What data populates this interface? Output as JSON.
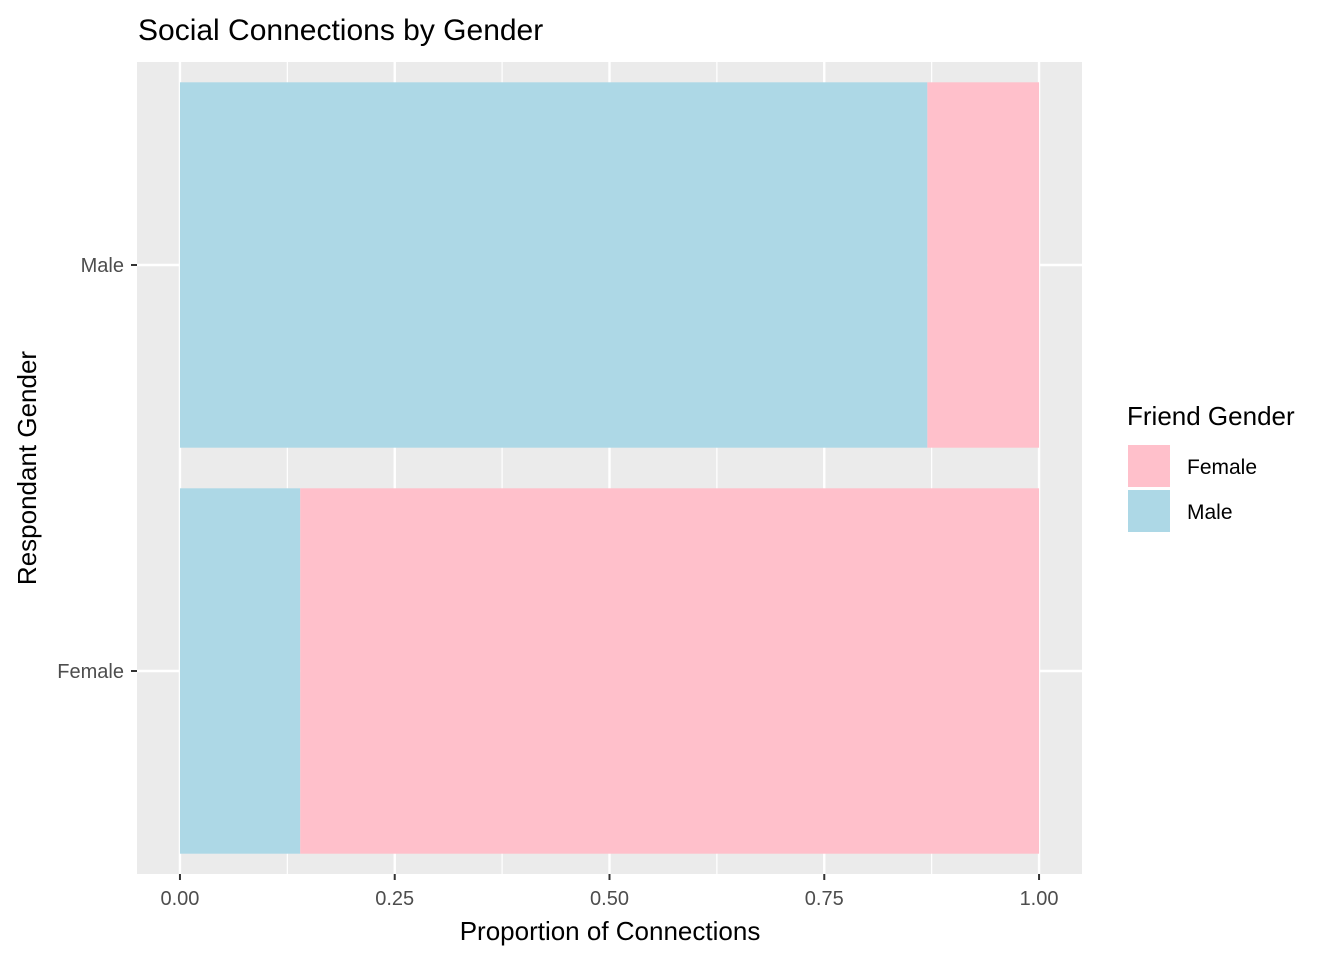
{
  "chart_data": {
    "type": "bar",
    "orientation": "horizontal",
    "stacked": true,
    "title": "Social Connections by Gender",
    "xlabel": "Proportion of Connections",
    "ylabel": "Respondant Gender",
    "categories": [
      "Male",
      "Female"
    ],
    "series": [
      {
        "name": "Male",
        "color": "#ADD8E6",
        "values": [
          0.87,
          0.14
        ]
      },
      {
        "name": "Female",
        "color": "#FFC0CB",
        "values": [
          0.13,
          0.86
        ]
      }
    ],
    "xlim": [
      -0.05,
      1.05
    ],
    "xticks": [
      0,
      0.25,
      0.5,
      0.75,
      1
    ],
    "xtick_labels": [
      "0.00",
      "0.25",
      "0.50",
      "0.75",
      "1.00"
    ],
    "grid": true,
    "panel_color": "#EBEBEB",
    "legend": {
      "title": "Friend Gender",
      "position": "right",
      "items": [
        {
          "label": "Female",
          "color": "#FFC0CB"
        },
        {
          "label": "Male",
          "color": "#ADD8E6"
        }
      ]
    }
  }
}
